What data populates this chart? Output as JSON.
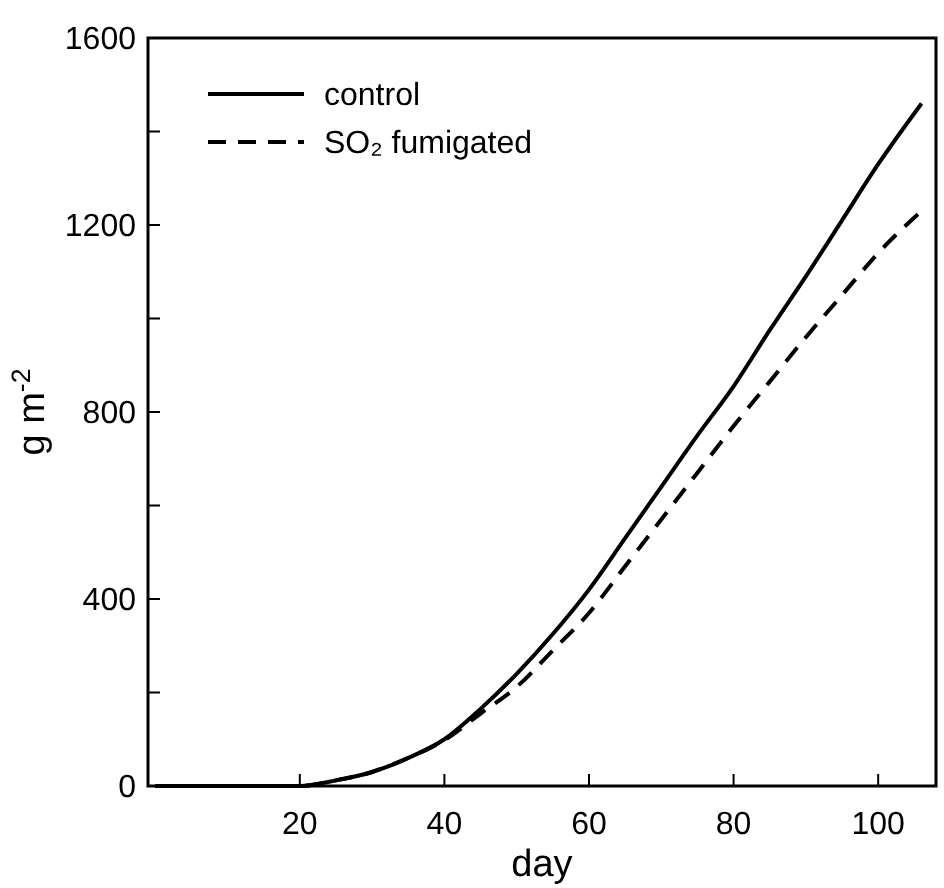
{
  "chart_data": {
    "type": "line",
    "xlabel": "day",
    "ylabel": "g m$^{-2}$",
    "xlim": [
      -1,
      108
    ],
    "ylim": [
      0,
      1600
    ],
    "xticks": [
      20,
      40,
      60,
      80,
      100
    ],
    "yticks": [
      0,
      {
        "value": 200,
        "label": null
      },
      400,
      {
        "value": 600,
        "label": null
      },
      800,
      {
        "value": 1000,
        "label": null
      },
      1200,
      {
        "value": 1400,
        "label": null
      },
      1600
    ],
    "grid": false,
    "legend": "top left",
    "x": [
      0,
      10,
      20,
      25,
      30,
      35,
      40,
      45,
      50,
      55,
      60,
      65,
      70,
      75,
      80,
      85,
      90,
      95,
      100,
      106
    ],
    "series": [
      {
        "name": "control",
        "color": "#000000",
        "line_style": "solid",
        "values": [
          0,
          0,
          0,
          12,
          30,
          60,
          100,
          165,
          240,
          325,
          420,
          530,
          640,
          750,
          855,
          975,
          1090,
          1210,
          1330,
          1460
        ]
      },
      {
        "name": "SO₂ fumigated",
        "color": "#000000",
        "line_style": "dashed",
        "values": [
          0,
          0,
          0,
          12,
          30,
          60,
          98,
          155,
          212,
          290,
          370,
          470,
          570,
          670,
          770,
          865,
          960,
          1050,
          1140,
          1230
        ]
      }
    ]
  }
}
